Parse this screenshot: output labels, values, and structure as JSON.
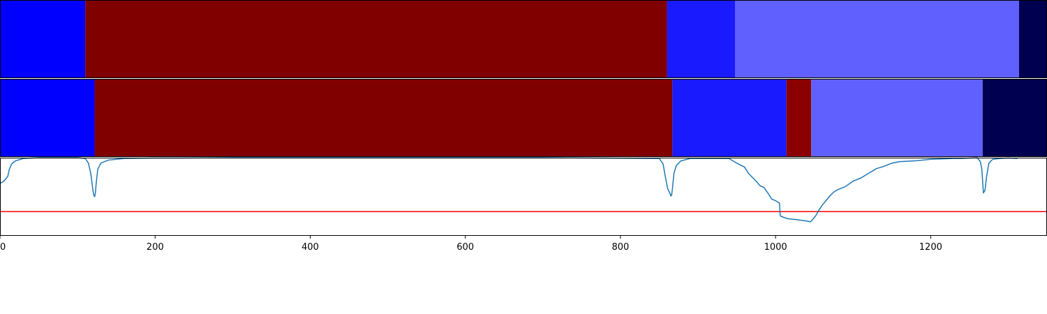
{
  "chart_data": {
    "type": "line",
    "title": "",
    "xlabel": "",
    "ylabel": "",
    "xlim": [
      0,
      1350
    ],
    "grid": false,
    "x_ticks": [
      0,
      200,
      400,
      600,
      800,
      1000,
      1200
    ],
    "segment_tracks": [
      {
        "segments": [
          {
            "start": 0,
            "end": 110,
            "color": "#0000ff"
          },
          {
            "start": 110,
            "end": 860,
            "color": "#800000"
          },
          {
            "start": 860,
            "end": 948,
            "color": "#1a1aff"
          },
          {
            "start": 948,
            "end": 1314,
            "color": "#6060ff"
          },
          {
            "start": 1314,
            "end": 1350,
            "color": "#000050"
          }
        ]
      },
      {
        "segments": [
          {
            "start": 0,
            "end": 122,
            "color": "#0000ff"
          },
          {
            "start": 122,
            "end": 867,
            "color": "#800000"
          },
          {
            "start": 867,
            "end": 1014,
            "color": "#1a1aff"
          },
          {
            "start": 1014,
            "end": 1046,
            "color": "#8b0000"
          },
          {
            "start": 1046,
            "end": 1267,
            "color": "#6060ff"
          },
          {
            "start": 1267,
            "end": 1350,
            "color": "#000050"
          }
        ]
      }
    ],
    "signal": {
      "ylim": [
        0,
        1
      ],
      "threshold": 0.31,
      "threshold_color": "#ff0000",
      "line_color": "#1f77b4",
      "x": [
        0,
        5,
        10,
        12,
        15,
        20,
        30,
        50,
        100,
        110,
        114,
        117,
        119,
        120,
        121,
        122,
        123,
        124,
        126,
        130,
        140,
        160,
        200,
        230,
        300,
        500,
        700,
        850,
        855,
        858,
        861,
        864,
        865,
        866,
        867,
        869,
        872,
        878,
        890,
        920,
        940,
        950,
        960,
        965,
        970,
        975,
        980,
        985,
        990,
        995,
        1000,
        1005,
        1006,
        1007,
        1015,
        1025,
        1040,
        1045,
        1048,
        1052,
        1056,
        1060,
        1065,
        1070,
        1075,
        1080,
        1090,
        1100,
        1110,
        1120,
        1130,
        1140,
        1150,
        1160,
        1180,
        1200,
        1230,
        1240,
        1260,
        1264,
        1266,
        1267,
        1268,
        1270,
        1272,
        1275,
        1280,
        1290,
        1300,
        1312
      ],
      "y": [
        0.67,
        0.7,
        0.76,
        0.85,
        0.92,
        0.96,
        0.99,
        1.0,
        1.0,
        0.99,
        0.93,
        0.8,
        0.65,
        0.57,
        0.52,
        0.5,
        0.55,
        0.67,
        0.85,
        0.93,
        0.97,
        0.99,
        0.995,
        0.995,
        1.0,
        1.0,
        1.0,
        0.99,
        0.92,
        0.75,
        0.6,
        0.54,
        0.51,
        0.52,
        0.6,
        0.8,
        0.9,
        0.96,
        0.99,
        0.99,
        0.99,
        0.93,
        0.88,
        0.8,
        0.75,
        0.7,
        0.64,
        0.62,
        0.55,
        0.47,
        0.45,
        0.42,
        0.26,
        0.25,
        0.22,
        0.21,
        0.19,
        0.18,
        0.21,
        0.26,
        0.33,
        0.39,
        0.45,
        0.51,
        0.56,
        0.59,
        0.63,
        0.7,
        0.74,
        0.8,
        0.86,
        0.89,
        0.93,
        0.95,
        0.96,
        0.98,
        0.99,
        0.99,
        1.0,
        0.95,
        0.85,
        0.7,
        0.55,
        0.58,
        0.75,
        0.93,
        0.98,
        0.99,
        0.995,
        0.99
      ]
    }
  }
}
